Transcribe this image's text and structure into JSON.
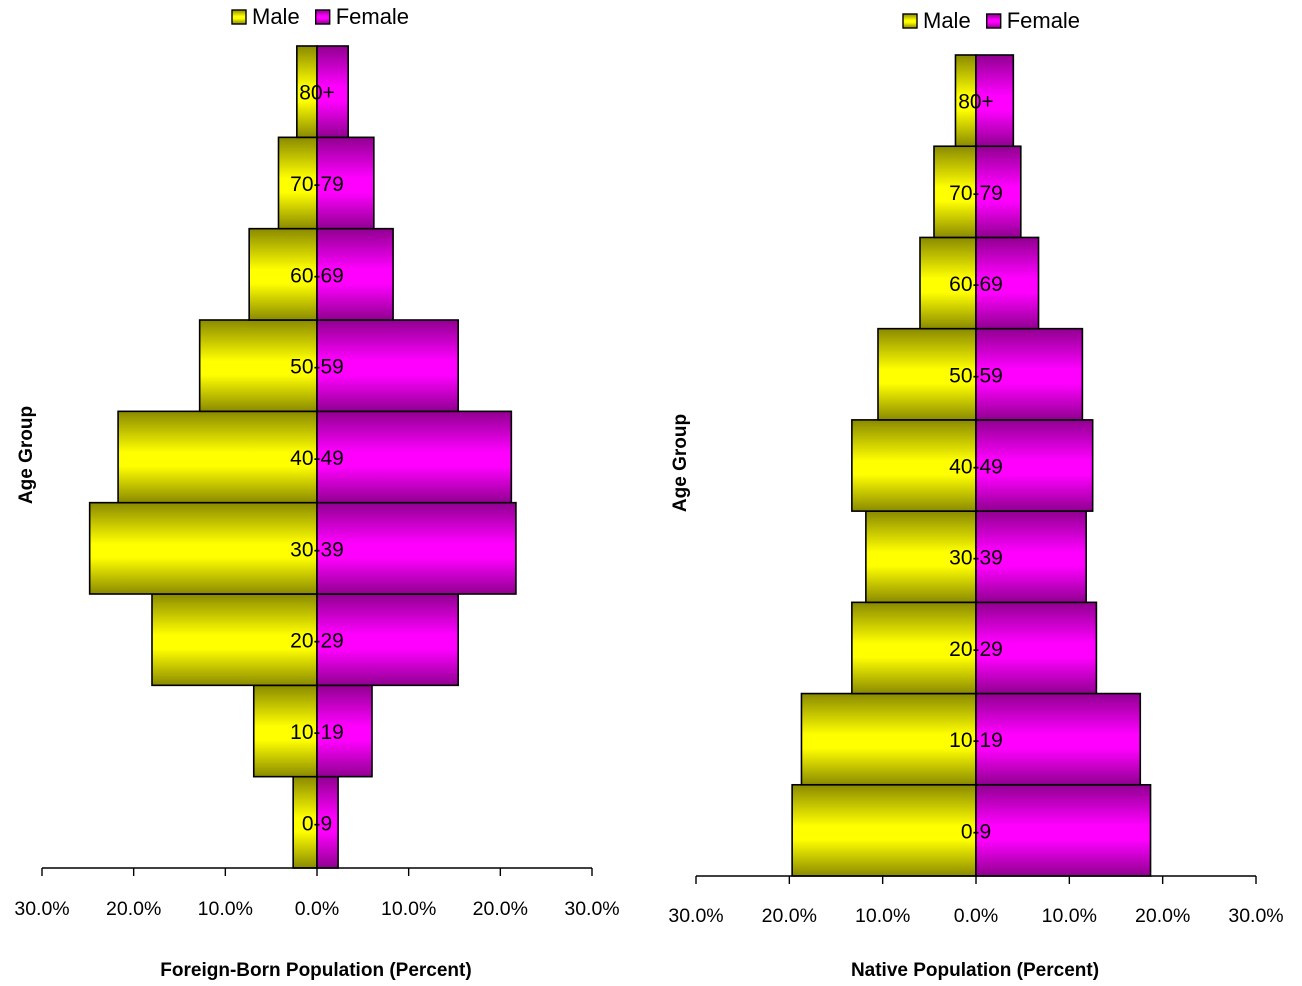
{
  "chart_data": [
    {
      "type": "bar",
      "orientation": "horizontal-pyramid",
      "categories": [
        "0-9",
        "10-19",
        "20-29",
        "30-39",
        "40-49",
        "50-59",
        "60-69",
        "70-79",
        "80+"
      ],
      "series": [
        {
          "name": "Male",
          "color": "#ffff00",
          "values": [
            2.6,
            6.9,
            18.0,
            24.8,
            21.7,
            12.8,
            7.4,
            4.2,
            2.2
          ]
        },
        {
          "name": "Female",
          "color": "#ff00ff",
          "values": [
            2.3,
            6.0,
            15.4,
            21.7,
            21.2,
            15.4,
            8.3,
            6.2,
            3.4
          ]
        }
      ],
      "xlabel": "Foreign-Born Population (Percent)",
      "ylabel": "Age Group",
      "xlim": [
        -30,
        30
      ],
      "ticks": [
        -30,
        -20,
        -10,
        0,
        10,
        20,
        30
      ],
      "tick_labels": [
        "30.0%",
        "20.0%",
        "10.0%",
        "0.0%",
        "10.0%",
        "20.0%",
        "30.0%"
      ],
      "legend": [
        "Male",
        "Female"
      ],
      "legend_position": "top",
      "grid": false
    },
    {
      "type": "bar",
      "orientation": "horizontal-pyramid",
      "categories": [
        "0-9",
        "10-19",
        "20-29",
        "30-39",
        "40-49",
        "50-59",
        "60-69",
        "70-79",
        "80+"
      ],
      "series": [
        {
          "name": "Male",
          "color": "#ffff00",
          "values": [
            19.7,
            18.7,
            13.3,
            11.8,
            13.3,
            10.5,
            6.0,
            4.5,
            2.2
          ]
        },
        {
          "name": "Female",
          "color": "#ff00ff",
          "values": [
            18.7,
            17.6,
            12.9,
            11.8,
            12.5,
            11.4,
            6.7,
            4.8,
            4.0
          ]
        }
      ],
      "xlabel": "Native Population (Percent)",
      "ylabel": "Age Group",
      "xlim": [
        -30,
        30
      ],
      "ticks": [
        -30,
        -20,
        -10,
        0,
        10,
        20,
        30
      ],
      "tick_labels": [
        "30.0%",
        "20.0%",
        "10.0%",
        "0.0%",
        "10.0%",
        "20.0%",
        "30.0%"
      ],
      "legend": [
        "Male",
        "Female"
      ],
      "legend_position": "top",
      "grid": false
    }
  ]
}
